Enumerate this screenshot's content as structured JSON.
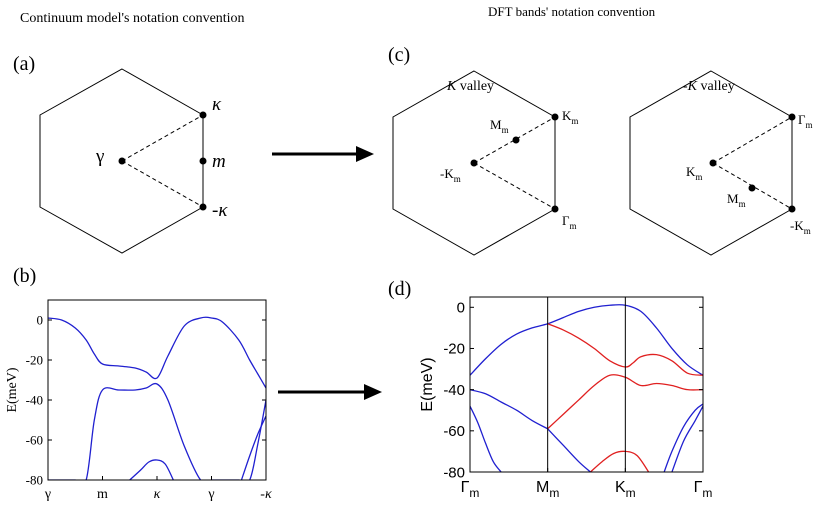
{
  "headings": {
    "left": "Continuum model's notation convention",
    "right": "DFT bands' notation convention"
  },
  "panel_labels": {
    "a": "(a)",
    "b": "(b)",
    "c": "(c)",
    "d": "(d)"
  },
  "panel_a": {
    "points": {
      "gamma": "γ",
      "kappa": "κ",
      "m": "m",
      "minus_kappa": "-κ"
    }
  },
  "panel_c": {
    "k_valley": {
      "title": "K valley",
      "points": {
        "mm": "M",
        "km": "K",
        "minus_km": "-K",
        "gm": "Γ"
      }
    },
    "minus_k_valley": {
      "title": "-K valley",
      "points": {
        "gm": "Γ",
        "km": "K",
        "mm": "M",
        "minus_km": "-K"
      }
    },
    "subscript": "m"
  },
  "chart_data": [
    {
      "id": "b",
      "type": "line",
      "ylabel": "E(meV)",
      "xlabel": "",
      "xticks": [
        "γ",
        "m",
        "κ",
        "γ",
        "-κ"
      ],
      "xtick_positions": [
        0,
        1,
        2,
        3,
        4
      ],
      "xlim": [
        0,
        4
      ],
      "ylim": [
        -80,
        10
      ],
      "yticks": [
        0,
        -20,
        -40,
        -60,
        -80
      ],
      "colors": {
        "blue": "#2020d0"
      },
      "series": [
        {
          "color": "blue",
          "x": [
            0,
            0.25,
            0.5,
            0.7,
            0.85,
            1,
            1.3,
            1.6,
            1.8,
            2,
            2.2,
            2.5,
            2.8,
            3,
            3.2,
            3.5,
            3.7,
            3.85,
            4
          ],
          "y": [
            1,
            0,
            -4,
            -10,
            -17,
            -22,
            -23,
            -24,
            -26,
            -29,
            -18,
            -3,
            1,
            1,
            -1,
            -10,
            -20,
            -27,
            -34
          ]
        },
        {
          "color": "blue",
          "x": [
            0,
            0.25,
            0.5,
            0.7,
            0.85,
            1,
            1.3,
            1.6,
            1.8,
            2,
            2.2,
            2.5,
            2.8,
            3,
            3.2,
            3.5,
            3.7,
            3.85,
            4
          ],
          "y": [
            -80,
            -80,
            -80,
            -80,
            -50,
            -35,
            -35,
            -35,
            -34,
            -32,
            -40,
            -63,
            -80,
            -80,
            -80,
            -80,
            -80,
            -62,
            -40
          ]
        },
        {
          "color": "blue",
          "x": [
            1.5,
            1.7,
            1.85,
            2,
            2.15,
            2.3
          ],
          "y": [
            -80,
            -75,
            -71,
            -70,
            -72,
            -80
          ]
        },
        {
          "color": "blue",
          "x": [
            3.55,
            3.7,
            3.85,
            4
          ],
          "y": [
            -80,
            -68,
            -57,
            -48
          ]
        }
      ]
    },
    {
      "id": "d",
      "type": "line",
      "ylabel": "E(meV)",
      "xlabel": "",
      "xticks": [
        "Γ",
        "M",
        "K",
        "Γ"
      ],
      "xtick_subscript": "m",
      "xtick_positions": [
        0,
        1,
        2,
        3
      ],
      "xlim": [
        0,
        3
      ],
      "ylim": [
        -80,
        5
      ],
      "yticks": [
        0,
        -20,
        -40,
        -60,
        -80
      ],
      "vertical_lines_at": [
        1,
        2
      ],
      "colors": {
        "blue": "#2020d0",
        "red": "#e02020"
      },
      "series": [
        {
          "color": "blue",
          "x": [
            0,
            0.2,
            0.4,
            0.6,
            0.8,
            1,
            1.2,
            1.4,
            1.6,
            1.8,
            2,
            2.2,
            2.4,
            2.6,
            2.8,
            3
          ],
          "y": [
            -33,
            -25,
            -18,
            -13,
            -10,
            -8,
            -5,
            -2,
            0,
            1,
            1,
            -2,
            -10,
            -20,
            -28,
            -33
          ]
        },
        {
          "color": "blue",
          "x": [
            0,
            0.2,
            0.4,
            0.6,
            0.8,
            1
          ],
          "y": [
            -40,
            -42,
            -46,
            -50,
            -55,
            -59
          ]
        },
        {
          "color": "blue",
          "x": [
            0,
            0.1,
            0.2,
            0.3,
            0.4
          ],
          "y": [
            -48,
            -56,
            -66,
            -75,
            -80
          ]
        },
        {
          "color": "red",
          "x": [
            1,
            1.2,
            1.4,
            1.6,
            1.8,
            2,
            2.1,
            2.2,
            2.4,
            2.6,
            2.8,
            3
          ],
          "y": [
            -8,
            -11,
            -15,
            -20,
            -26,
            -29,
            -27,
            -24,
            -23,
            -26,
            -32,
            -33
          ]
        },
        {
          "color": "red",
          "x": [
            1,
            1.2,
            1.4,
            1.6,
            1.8,
            2,
            2.2,
            2.4,
            2.6,
            2.8,
            3
          ],
          "y": [
            -59,
            -52,
            -45,
            -38,
            -33,
            -34,
            -38,
            -37,
            -38,
            -40,
            -40
          ]
        },
        {
          "color": "red",
          "x": [
            1.55,
            1.7,
            1.85,
            2,
            2.15,
            2.3
          ],
          "y": [
            -80,
            -75,
            -71,
            -70,
            -72,
            -80
          ]
        },
        {
          "color": "blue",
          "x": [
            1,
            1.2,
            1.4,
            1.55
          ],
          "y": [
            -59,
            -67,
            -75,
            -80
          ]
        },
        {
          "color": "blue",
          "x": [
            2.5,
            2.6,
            2.75,
            2.9,
            3
          ],
          "y": [
            -80,
            -70,
            -58,
            -50,
            -47
          ]
        },
        {
          "color": "blue",
          "x": [
            2.6,
            2.75,
            2.9,
            3
          ],
          "y": [
            -80,
            -65,
            -55,
            -48
          ]
        }
      ]
    }
  ]
}
